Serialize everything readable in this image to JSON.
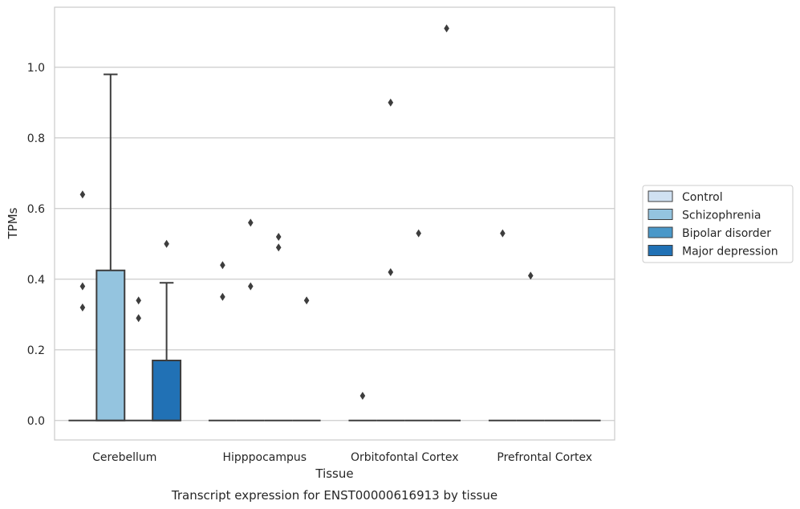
{
  "chart_data": {
    "type": "box",
    "xlabel": "Tissue",
    "ylabel": "TPMs",
    "caption": "Transcript expression for ENST00000616913 by tissue",
    "categories": [
      "Cerebellum",
      "Hipppocampus",
      "Orbitofontal Cortex",
      "Prefrontal Cortex"
    ],
    "ylim": [
      -0.055,
      1.17
    ],
    "yticks": [
      "0.0",
      "0.2",
      "0.4",
      "0.6",
      "0.8",
      "1.0"
    ],
    "grid": true,
    "legend_position": "right",
    "series": [
      {
        "name": "Control",
        "color": "#d0e1f2",
        "boxes": [
          {
            "q1": 0,
            "median": 0,
            "q3": 0,
            "whisker_low": 0,
            "whisker_high": 0,
            "outliers": [
              0.64,
              0.38,
              0.32
            ]
          },
          {
            "q1": 0,
            "median": 0,
            "q3": 0,
            "whisker_low": 0,
            "whisker_high": 0,
            "outliers": [
              0.44,
              0.35
            ]
          },
          {
            "q1": 0,
            "median": 0,
            "q3": 0,
            "whisker_low": 0,
            "whisker_high": 0,
            "outliers": [
              0.07
            ]
          },
          {
            "q1": 0,
            "median": 0,
            "q3": 0,
            "whisker_low": 0,
            "whisker_high": 0,
            "outliers": [
              0.53
            ]
          }
        ]
      },
      {
        "name": "Schizophrenia",
        "color": "#94c4df",
        "boxes": [
          {
            "q1": 0,
            "median": 0,
            "q3": 0.425,
            "whisker_low": 0,
            "whisker_high": 0.98,
            "outliers": []
          },
          {
            "q1": 0,
            "median": 0,
            "q3": 0,
            "whisker_low": 0,
            "whisker_high": 0,
            "outliers": [
              0.56,
              0.38
            ]
          },
          {
            "q1": 0,
            "median": 0,
            "q3": 0,
            "whisker_low": 0,
            "whisker_high": 0,
            "outliers": [
              0.9,
              0.42
            ]
          },
          {
            "q1": 0,
            "median": 0,
            "q3": 0,
            "whisker_low": 0,
            "whisker_high": 0,
            "outliers": [
              0.41
            ]
          }
        ]
      },
      {
        "name": "Bipolar disorder",
        "color": "#4a98c9",
        "boxes": [
          {
            "q1": 0,
            "median": 0,
            "q3": 0,
            "whisker_low": 0,
            "whisker_high": 0,
            "outliers": [
              0.34,
              0.29
            ]
          },
          {
            "q1": 0,
            "median": 0,
            "q3": 0,
            "whisker_low": 0,
            "whisker_high": 0,
            "outliers": [
              0.52,
              0.49
            ]
          },
          {
            "q1": 0,
            "median": 0,
            "q3": 0,
            "whisker_low": 0,
            "whisker_high": 0,
            "outliers": [
              0.53
            ]
          },
          {
            "q1": 0,
            "median": 0,
            "q3": 0,
            "whisker_low": 0,
            "whisker_high": 0,
            "outliers": []
          }
        ]
      },
      {
        "name": "Major depression",
        "color": "#2171b5",
        "boxes": [
          {
            "q1": 0,
            "median": 0,
            "q3": 0.17,
            "whisker_low": 0,
            "whisker_high": 0.39,
            "outliers": [
              0.5
            ]
          },
          {
            "q1": 0,
            "median": 0,
            "q3": 0,
            "whisker_low": 0,
            "whisker_high": 0,
            "outliers": [
              0.34
            ]
          },
          {
            "q1": 0,
            "median": 0,
            "q3": 0,
            "whisker_low": 0,
            "whisker_high": 0,
            "outliers": [
              1.11
            ]
          },
          {
            "q1": 0,
            "median": 0,
            "q3": 0,
            "whisker_low": 0,
            "whisker_high": 0,
            "outliers": []
          }
        ]
      }
    ]
  }
}
